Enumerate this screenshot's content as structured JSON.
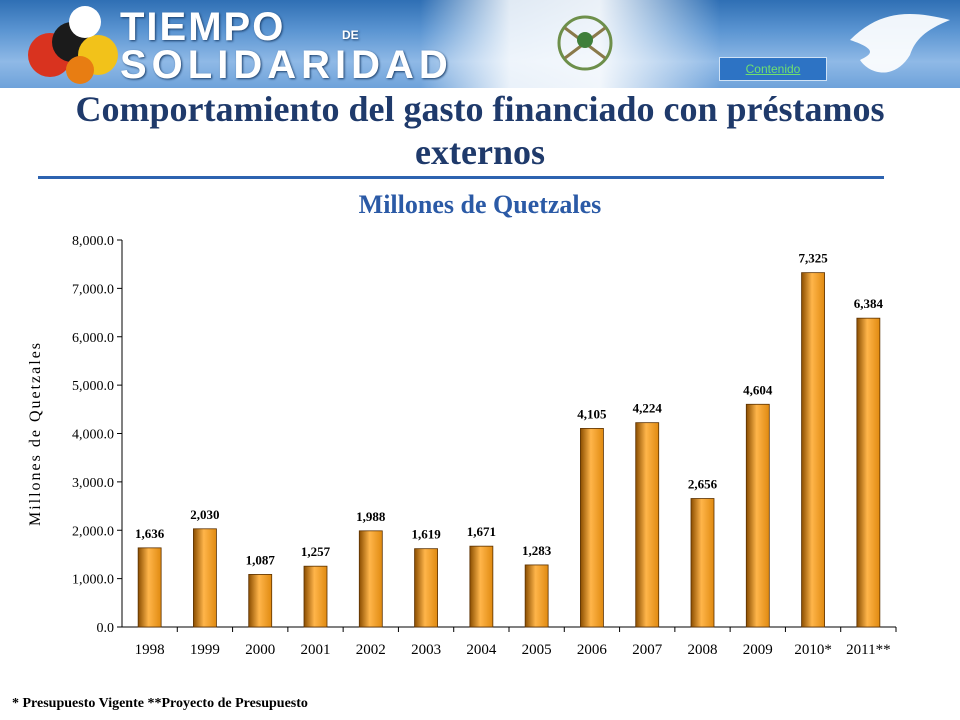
{
  "header": {
    "logo_line1": "TIEMPO",
    "logo_de": "DE",
    "logo_line2": "SOLIDARIDAD",
    "contenido_link": "Contenido"
  },
  "slide": {
    "title": "Comportamiento del gasto financiado con préstamos externos",
    "subtitle": "Millones de Quetzales",
    "footnote": "* Presupuesto Vigente  **Proyecto de Presupuesto"
  },
  "colors": {
    "bar": "#e08a10",
    "bar_dark": "#8a4d00",
    "title": "#1f3a6b"
  },
  "chart_data": {
    "type": "bar",
    "categories": [
      "1998",
      "1999",
      "2000",
      "2001",
      "2002",
      "2003",
      "2004",
      "2005",
      "2006",
      "2007",
      "2008",
      "2009",
      "2010*",
      "2011**"
    ],
    "values": [
      1636,
      2030,
      1087,
      1257,
      1988,
      1619,
      1671,
      1283,
      4105,
      4224,
      2656,
      4604,
      7325,
      6384
    ],
    "data_labels": [
      "1,636",
      "2,030",
      "1,087",
      "1,257",
      "1,988",
      "1,619",
      "1,671",
      "1,283",
      "4,105",
      "4,224",
      "2,656",
      "4,604",
      "7,325",
      "6,384"
    ],
    "yticks": [
      0,
      1000,
      2000,
      3000,
      4000,
      5000,
      6000,
      7000,
      8000
    ],
    "ytick_labels": [
      "0.0",
      "1,000.0",
      "2,000.0",
      "3,000.0",
      "4,000.0",
      "5,000.0",
      "6,000.0",
      "7,000.0",
      "8,000.0"
    ],
    "ylabel": "Millones de Quetzales",
    "ylim": [
      0,
      8000
    ],
    "grid": false,
    "legend": "none"
  }
}
